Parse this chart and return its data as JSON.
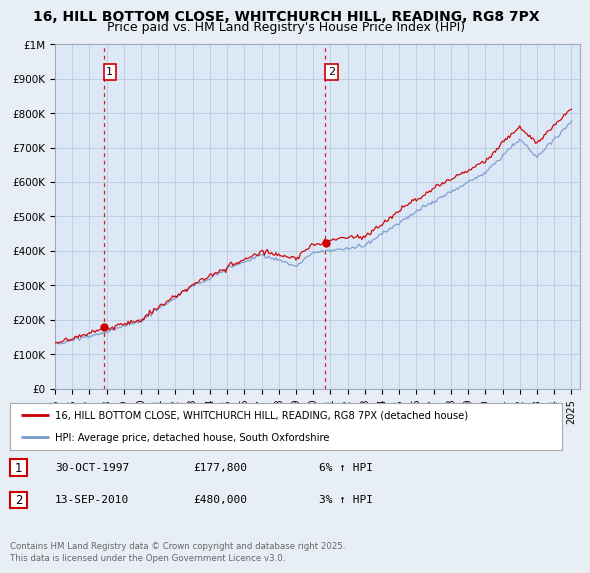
{
  "title": "16, HILL BOTTOM CLOSE, WHITCHURCH HILL, READING, RG8 7PX",
  "subtitle": "Price paid vs. HM Land Registry's House Price Index (HPI)",
  "ylim": [
    0,
    1000000
  ],
  "yticks": [
    0,
    100000,
    200000,
    300000,
    400000,
    500000,
    600000,
    700000,
    800000,
    900000,
    1000000
  ],
  "ytick_labels": [
    "£0",
    "£100K",
    "£200K",
    "£300K",
    "£400K",
    "£500K",
    "£600K",
    "£700K",
    "£800K",
    "£900K",
    "£1M"
  ],
  "background_color": "#e8eef5",
  "plot_bg_color": "#dce8f5",
  "grid_color": "#bbccdd",
  "sale1_date_num": 1997.83,
  "sale1_price": 177800,
  "sale1_label": "1",
  "sale2_date_num": 2010.71,
  "sale2_price": 480000,
  "sale2_label": "2",
  "legend_line1": "16, HILL BOTTOM CLOSE, WHITCHURCH HILL, READING, RG8 7PX (detached house)",
  "legend_line2": "HPI: Average price, detached house, South Oxfordshire",
  "table_row1": [
    "1",
    "30-OCT-1997",
    "£177,800",
    "6% ↑ HPI"
  ],
  "table_row2": [
    "2",
    "13-SEP-2010",
    "£480,000",
    "3% ↑ HPI"
  ],
  "footer": "Contains HM Land Registry data © Crown copyright and database right 2025.\nThis data is licensed under the Open Government Licence v3.0.",
  "line_color_price": "#cc0000",
  "line_color_hpi": "#7799cc",
  "title_fontsize": 10,
  "subtitle_fontsize": 9
}
